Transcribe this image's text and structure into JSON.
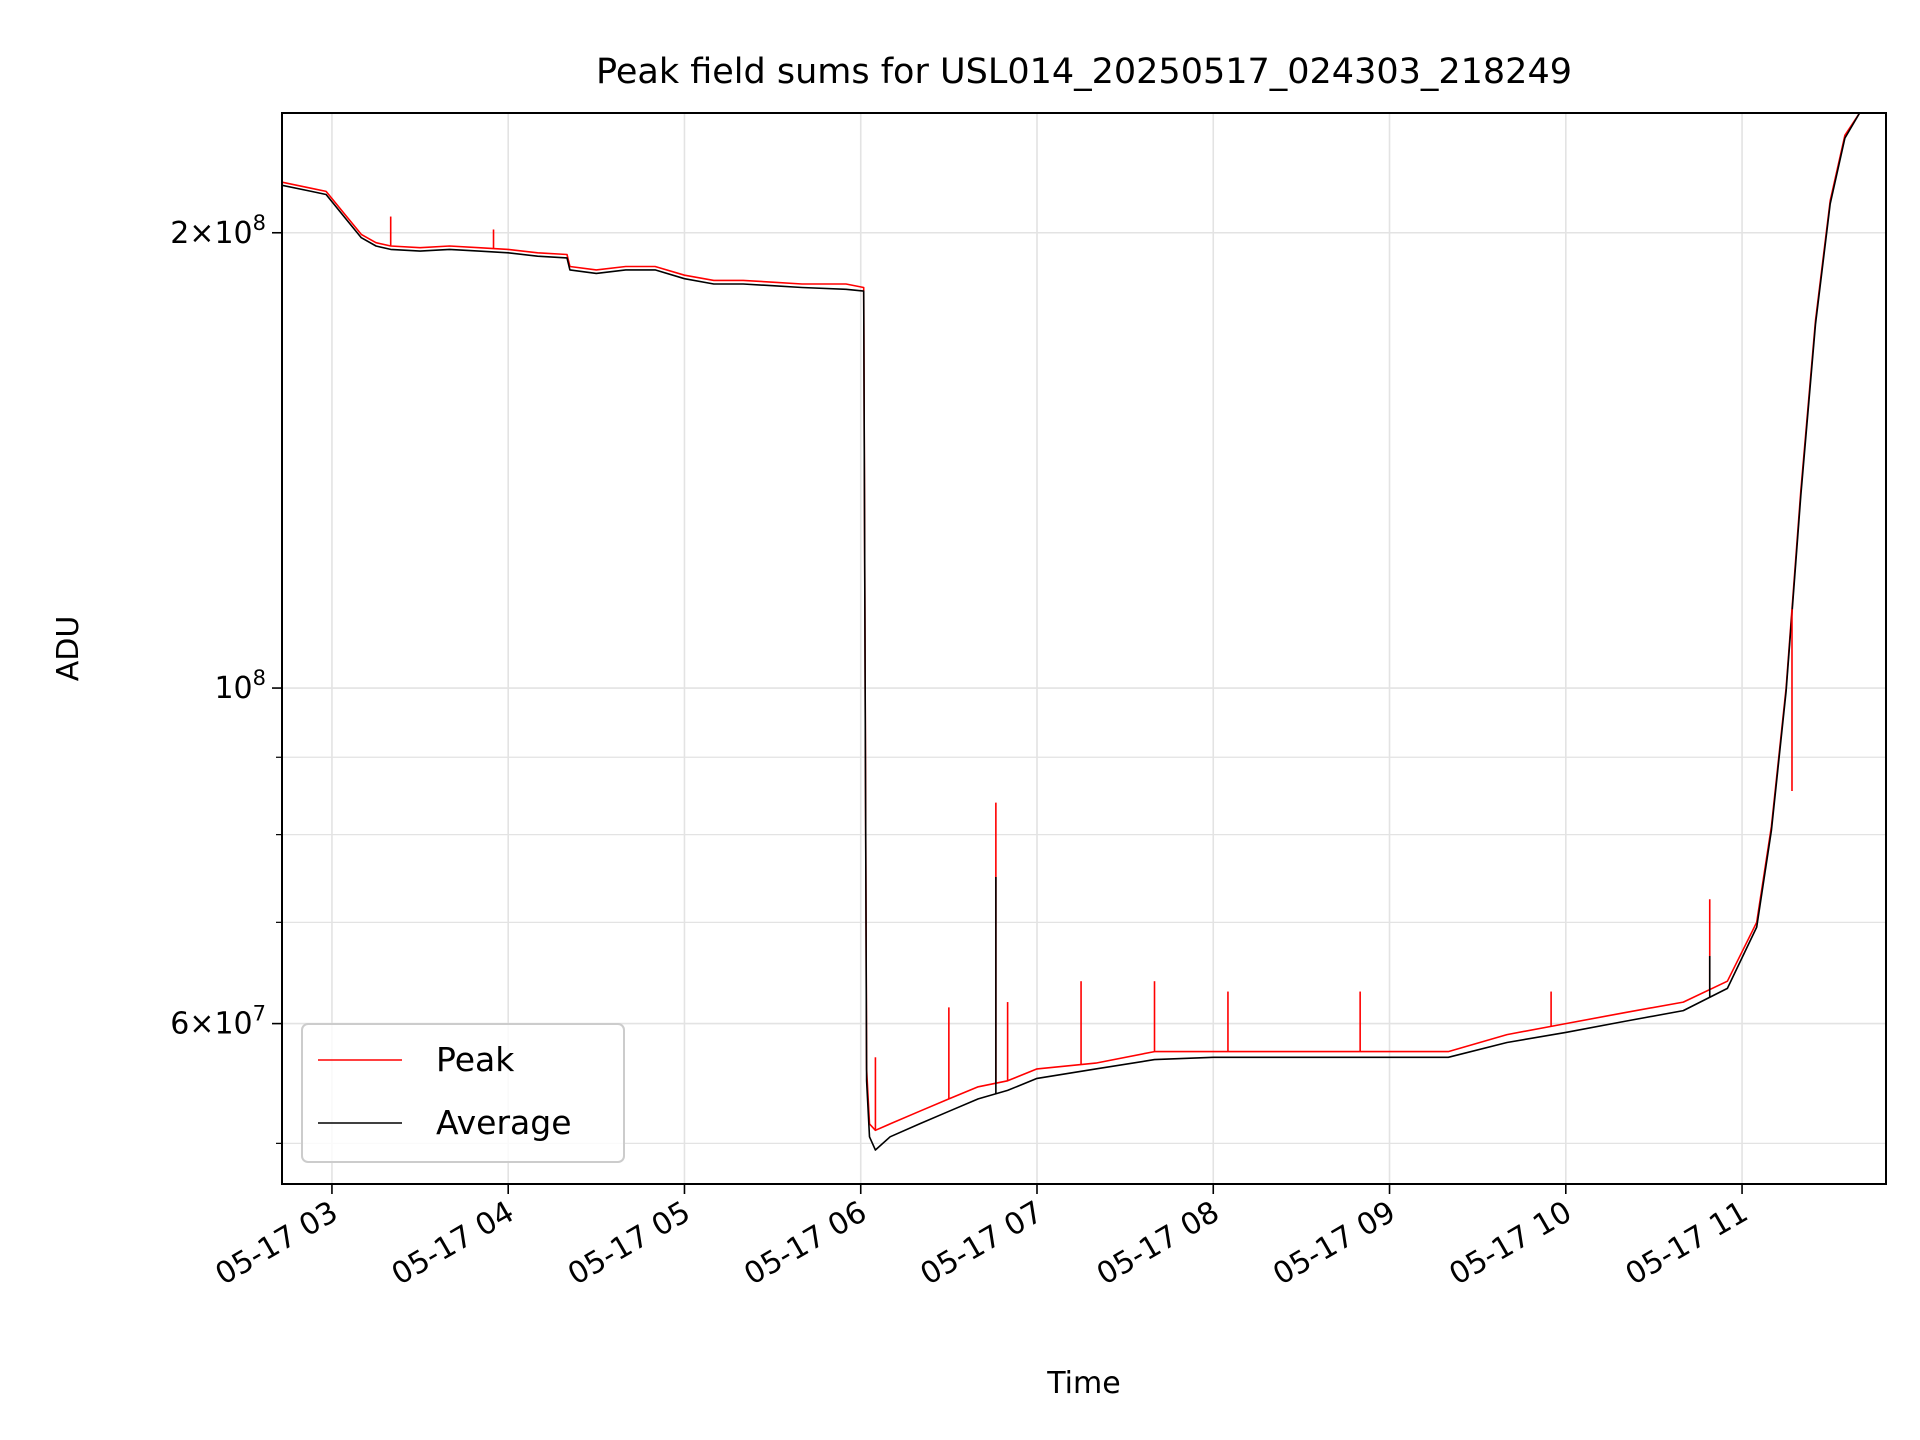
{
  "chart_data": {
    "type": "line",
    "title": "Peak field sums for USL014_20250517_024303_218249",
    "xlabel": "Time",
    "ylabel": "ADU",
    "y_scale": "log",
    "ylim": [
      47000000,
      240000000
    ],
    "xlim": [
      "2025-05-17 02:43",
      "2025-05-17 11:49"
    ],
    "grid": true,
    "legend_position": "lower-left",
    "x_ticks": [
      "05-17 03",
      "05-17 04",
      "05-17 05",
      "05-17 06",
      "05-17 07",
      "05-17 08",
      "05-17 09",
      "05-17 10",
      "05-17 11"
    ],
    "y_major_ticks": [
      {
        "value": 200000000,
        "mantissa": "2",
        "exp": "8"
      },
      {
        "value": 100000000,
        "mantissa": "",
        "exp": "8"
      },
      {
        "value": 60000000,
        "mantissa": "6",
        "exp": "7"
      }
    ],
    "series": [
      {
        "name": "Peak",
        "color": "#ff0000",
        "x": [
          "02:43",
          "02:53",
          "02:58",
          "03:05",
          "03:10",
          "03:15",
          "03:20",
          "03:30",
          "03:40",
          "03:50",
          "04:00",
          "04:10",
          "04:20",
          "04:21",
          "04:30",
          "04:40",
          "04:50",
          "05:00",
          "05:10",
          "05:20",
          "05:30",
          "05:40",
          "05:55",
          "06:01",
          "06:02",
          "06:03",
          "06:05",
          "06:10",
          "06:20",
          "06:30",
          "06:40",
          "06:50",
          "07:00",
          "07:20",
          "07:40",
          "08:00",
          "08:20",
          "08:40",
          "09:00",
          "09:20",
          "09:40",
          "10:00",
          "10:20",
          "10:40",
          "10:55",
          "11:05",
          "11:10",
          "11:15",
          "11:20",
          "11:25",
          "11:30",
          "11:35",
          "11:40",
          "11:42"
        ],
        "y": [
          216000000,
          214000000,
          213000000,
          205000000,
          199500000,
          197000000,
          196000000,
          195500000,
          196000000,
          195500000,
          195000000,
          194000000,
          193500000,
          190000000,
          189000000,
          190000000,
          190000000,
          187500000,
          186000000,
          186000000,
          185500000,
          185000000,
          185000000,
          184000000,
          56000000,
          51500000,
          51000000,
          51500000,
          52500000,
          53500000,
          54500000,
          55000000,
          56000000,
          56500000,
          57500000,
          57500000,
          57500000,
          57500000,
          57500000,
          57500000,
          59000000,
          60000000,
          61000000,
          62000000,
          64000000,
          70000000,
          81000000,
          100000000,
          135000000,
          175000000,
          210000000,
          232000000,
          240000000,
          240000000
        ]
      },
      {
        "name": "Average",
        "color": "#000000",
        "x": [
          "02:43",
          "02:53",
          "02:58",
          "03:05",
          "03:10",
          "03:15",
          "03:20",
          "03:30",
          "03:40",
          "03:50",
          "04:00",
          "04:10",
          "04:20",
          "04:21",
          "04:30",
          "04:40",
          "04:50",
          "05:00",
          "05:10",
          "05:20",
          "05:30",
          "05:40",
          "05:55",
          "06:01",
          "06:02",
          "06:03",
          "06:05",
          "06:10",
          "06:20",
          "06:30",
          "06:40",
          "06:50",
          "07:00",
          "07:20",
          "07:40",
          "08:00",
          "08:20",
          "08:40",
          "09:00",
          "09:20",
          "09:40",
          "10:00",
          "10:20",
          "10:40",
          "10:55",
          "11:05",
          "11:10",
          "11:15",
          "11:20",
          "11:25",
          "11:30",
          "11:35",
          "11:40",
          "11:42"
        ],
        "y": [
          215000000,
          213000000,
          212000000,
          204000000,
          198500000,
          196000000,
          195000000,
          194500000,
          195000000,
          194500000,
          194000000,
          193000000,
          192500000,
          189000000,
          188000000,
          189000000,
          189000000,
          186500000,
          185000000,
          185000000,
          184500000,
          184000000,
          183500000,
          183000000,
          55000000,
          50500000,
          49500000,
          50500000,
          51500000,
          52500000,
          53500000,
          54200000,
          55200000,
          56000000,
          56800000,
          57000000,
          57000000,
          57000000,
          57000000,
          57000000,
          58300000,
          59200000,
          60200000,
          61200000,
          63300000,
          69500000,
          80500000,
          99500000,
          134000000,
          174000000,
          209000000,
          231000000,
          240000000,
          240000000
        ]
      }
    ],
    "spikes": [
      {
        "series": "Peak",
        "x": "03:20",
        "y": 205000000
      },
      {
        "series": "Peak",
        "x": "03:55",
        "y": 201000000
      },
      {
        "series": "Peak",
        "x": "06:05",
        "y": 57000000
      },
      {
        "series": "Peak",
        "x": "06:30",
        "y": 61500000
      },
      {
        "series": "Peak",
        "x": "06:46",
        "y": 84000000
      },
      {
        "series": "Average",
        "x": "06:46",
        "y": 75000000
      },
      {
        "series": "Peak",
        "x": "06:50",
        "y": 62000000
      },
      {
        "series": "Peak",
        "x": "07:15",
        "y": 64000000
      },
      {
        "series": "Peak",
        "x": "07:40",
        "y": 64000000
      },
      {
        "series": "Peak",
        "x": "08:05",
        "y": 63000000
      },
      {
        "series": "Peak",
        "x": "08:50",
        "y": 63000000
      },
      {
        "series": "Peak",
        "x": "09:55",
        "y": 63000000
      },
      {
        "series": "Peak",
        "x": "10:49",
        "y": 72500000
      },
      {
        "series": "Average",
        "x": "10:49",
        "y": 66500000
      },
      {
        "series": "Peak",
        "x": "11:17",
        "y": 85500000
      }
    ]
  }
}
